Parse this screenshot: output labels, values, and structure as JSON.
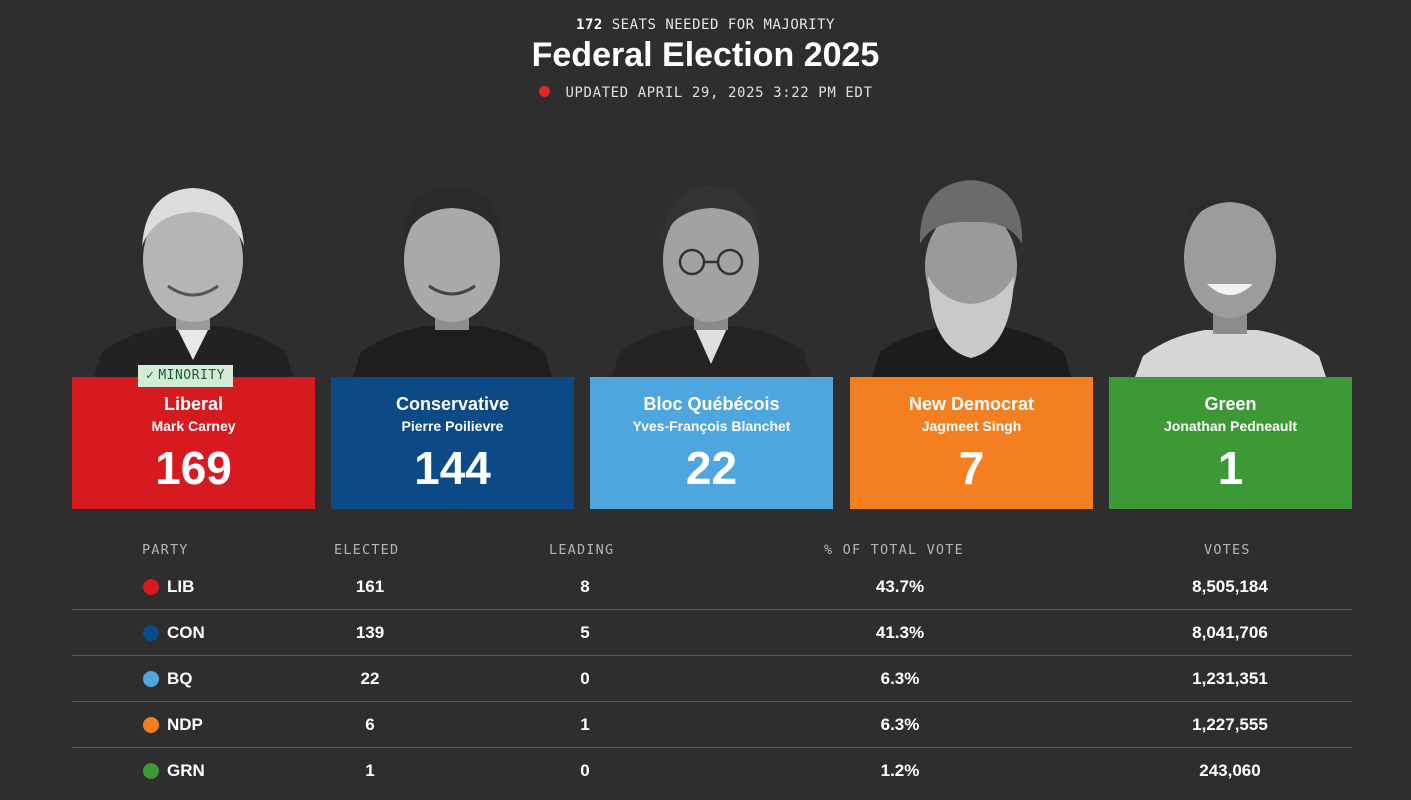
{
  "header": {
    "majority_number": "172",
    "majority_text": "SEATS NEEDED FOR MAJORITY",
    "title": "Federal Election 2025",
    "updated": "UPDATED APRIL 29, 2025 3:22 PM EDT",
    "live_color": "#e5261b"
  },
  "parties": [
    {
      "name": "Liberal",
      "leader": "Mark Carney",
      "seats": "169",
      "color": "#d71920",
      "badge": "MINORITY",
      "badge_icon": "check-icon"
    },
    {
      "name": "Conservative",
      "leader": "Pierre Poilievre",
      "seats": "144",
      "color": "#0b4a86"
    },
    {
      "name": "Bloc Québécois",
      "leader": "Yves-François Blanchet",
      "seats": "22",
      "color": "#4ea6df"
    },
    {
      "name": "New Democrat",
      "leader": "Jagmeet Singh",
      "seats": "7",
      "color": "#f37f20"
    },
    {
      "name": "Green",
      "leader": "Jonathan Pedneault",
      "seats": "1",
      "color": "#3d9935"
    }
  ],
  "table": {
    "headers": {
      "party": "PARTY",
      "elected": "ELECTED",
      "leading": "LEADING",
      "pct": "% OF TOTAL VOTE",
      "votes": "VOTES"
    },
    "rows": [
      {
        "party": "LIB",
        "elected": "161",
        "leading": "8",
        "pct": "43.7%",
        "votes": "8,505,184",
        "color": "#d71920"
      },
      {
        "party": "CON",
        "elected": "139",
        "leading": "5",
        "pct": "41.3%",
        "votes": "8,041,706",
        "color": "#0b4a86"
      },
      {
        "party": "BQ",
        "elected": "22",
        "leading": "0",
        "pct": "6.3%",
        "votes": "1,231,351",
        "color": "#4ea6df"
      },
      {
        "party": "NDP",
        "elected": "6",
        "leading": "1",
        "pct": "6.3%",
        "votes": "1,227,555",
        "color": "#f37f20"
      },
      {
        "party": "GRN",
        "elected": "1",
        "leading": "0",
        "pct": "1.2%",
        "votes": "243,060",
        "color": "#3d9935"
      }
    ]
  }
}
